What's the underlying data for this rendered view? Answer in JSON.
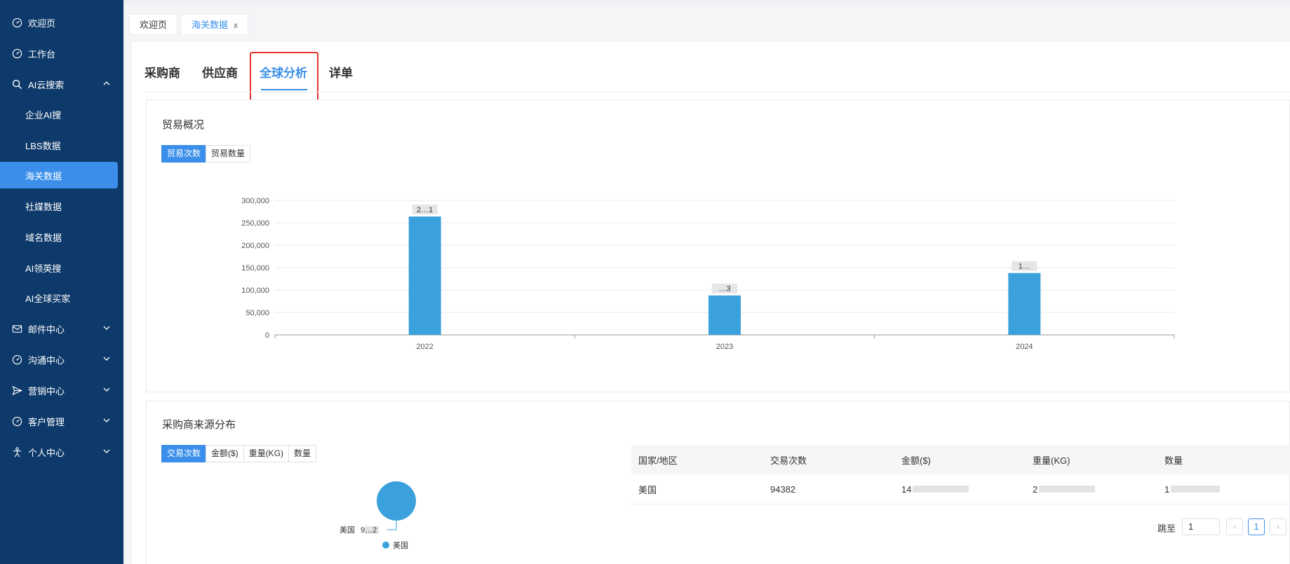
{
  "sidebar": {
    "items": [
      {
        "label": "欢迎页",
        "icon": "dashboard-icon"
      },
      {
        "label": "工作台",
        "icon": "dashboard-icon"
      },
      {
        "label": "AI云搜索",
        "icon": "search-icon",
        "expanded": true
      },
      {
        "label": "邮件中心",
        "icon": "mail-icon"
      },
      {
        "label": "沟通中心",
        "icon": "dashboard-icon"
      },
      {
        "label": "营销中心",
        "icon": "send-icon"
      },
      {
        "label": "客户管理",
        "icon": "dashboard-icon"
      },
      {
        "label": "个人中心",
        "icon": "person-icon"
      }
    ],
    "sub_items": [
      "企业AI搜",
      "LBS数据",
      "海关数据",
      "社媒数据",
      "域名数据",
      "AI领英搜",
      "AI全球买家"
    ],
    "active_sub": "海关数据"
  },
  "tags": {
    "welcome": "欢迎页",
    "customs": "海关数据",
    "close": "x"
  },
  "tabs": [
    "采购商",
    "供应商",
    "全球分析",
    "详单"
  ],
  "active_tab": "全球分析",
  "trade_overview": {
    "title": "贸易概况",
    "buttons": [
      "贸易次数",
      "贸易数量"
    ],
    "active_button": "贸易次数",
    "bar_labels": [
      "2…1",
      "…3",
      "1…"
    ]
  },
  "chart_data": {
    "type": "bar",
    "categories": [
      "2022",
      "2023",
      "2024"
    ],
    "values": [
      264000,
      88000,
      138000
    ],
    "ylim": [
      0,
      300000
    ],
    "yticks": [
      "0",
      "50,000",
      "100,000",
      "150,000",
      "200,000",
      "250,000",
      "300,000"
    ],
    "title": "",
    "xlabel": "",
    "ylabel": "",
    "color": "#3ba1dc",
    "grid": true
  },
  "buyer_source": {
    "title": "采购商来源分布",
    "buttons": [
      "交易次数",
      "金额($)",
      "重量(KG)",
      "数量"
    ],
    "active_button": "交易次数",
    "pie_label": "美国",
    "pie_value": "9…2",
    "legend": "美国",
    "pie_color": "#3ba1dc"
  },
  "table": {
    "headers": [
      "国家/地区",
      "交易次数",
      "金额($)",
      "重量(KG)",
      "数量"
    ],
    "rows": [
      {
        "country": "美国",
        "count": "94382",
        "amount": "14",
        "weight": "2",
        "qty": "1"
      }
    ]
  },
  "pager": {
    "jump_label": "跳至",
    "jump_value": "1",
    "current_page": "1",
    "prev": "‹",
    "next": "›"
  },
  "colors": {
    "sidebar_bg": "#0e3a6b",
    "accent": "#3b8fea",
    "highlight_box": "#e5322d"
  }
}
